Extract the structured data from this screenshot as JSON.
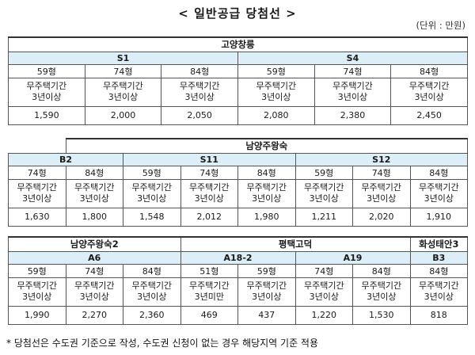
{
  "title": "< 일반공급 당첨선 >",
  "unit": "(단위 : 만원)",
  "footnote": "* 당첨선은 수도권 기준으로 작성, 수도권 신청이 없는 경우 해당지역 기준 적용",
  "table1": {
    "region": "고양창릉",
    "codes": [
      "S1",
      "S4"
    ],
    "sizes": [
      "59형",
      "74형",
      "84형",
      "59형",
      "74형",
      "84형"
    ],
    "cond_line1": [
      "무주택기간",
      "무주택기간",
      "무주택기간",
      "무주택기간",
      "무주택기간",
      "무주택기간"
    ],
    "cond_line2": [
      "3년이상",
      "3년이상",
      "3년이상",
      "3년이상",
      "3년이상",
      "3년이상"
    ],
    "values": [
      "1,590",
      "2,000",
      "2,050",
      "2,080",
      "2,380",
      "2,450"
    ]
  },
  "table2": {
    "region": "남양주왕숙",
    "codes": [
      "B2",
      "S11",
      "S12"
    ],
    "sizes": [
      "74형",
      "84형",
      "59형",
      "74형",
      "84형",
      "59형",
      "74형",
      "84형"
    ],
    "cond_line1": [
      "무주택기간",
      "무주택기간",
      "무주택기간",
      "무주택기간",
      "무주택기간",
      "무주택기간",
      "무주택기간",
      "무주택기간"
    ],
    "cond_line2": [
      "3년이상",
      "3년이상",
      "3년이상",
      "3년이상",
      "3년이상",
      "3년이상",
      "3년이상",
      "3년이상"
    ],
    "values": [
      "1,630",
      "1,800",
      "1,548",
      "2,012",
      "1,980",
      "1,211",
      "2,020",
      "1,910"
    ]
  },
  "table3": {
    "regions": [
      "남양주왕숙2",
      "평택고덕",
      "화성태안3"
    ],
    "codes": [
      "A6",
      "A18-2",
      "A19",
      "B3"
    ],
    "sizes": [
      "59형",
      "74형",
      "84형",
      "51형",
      "59형",
      "74형",
      "84형",
      "84형"
    ],
    "cond_line1": [
      "무주택기간",
      "무주택기간",
      "무주택기간",
      "무주택기간",
      "무주택기간",
      "무주택기간",
      "무주택기간",
      "무주택기간"
    ],
    "cond_line2": [
      "3년이상",
      "3년이상",
      "3년이상",
      "3년미만",
      "3년이상",
      "3년이상",
      "3년이상",
      "3년이상"
    ],
    "values": [
      "1,990",
      "2,270",
      "2,360",
      "469",
      "437",
      "1,220",
      "1,530",
      "818"
    ]
  }
}
